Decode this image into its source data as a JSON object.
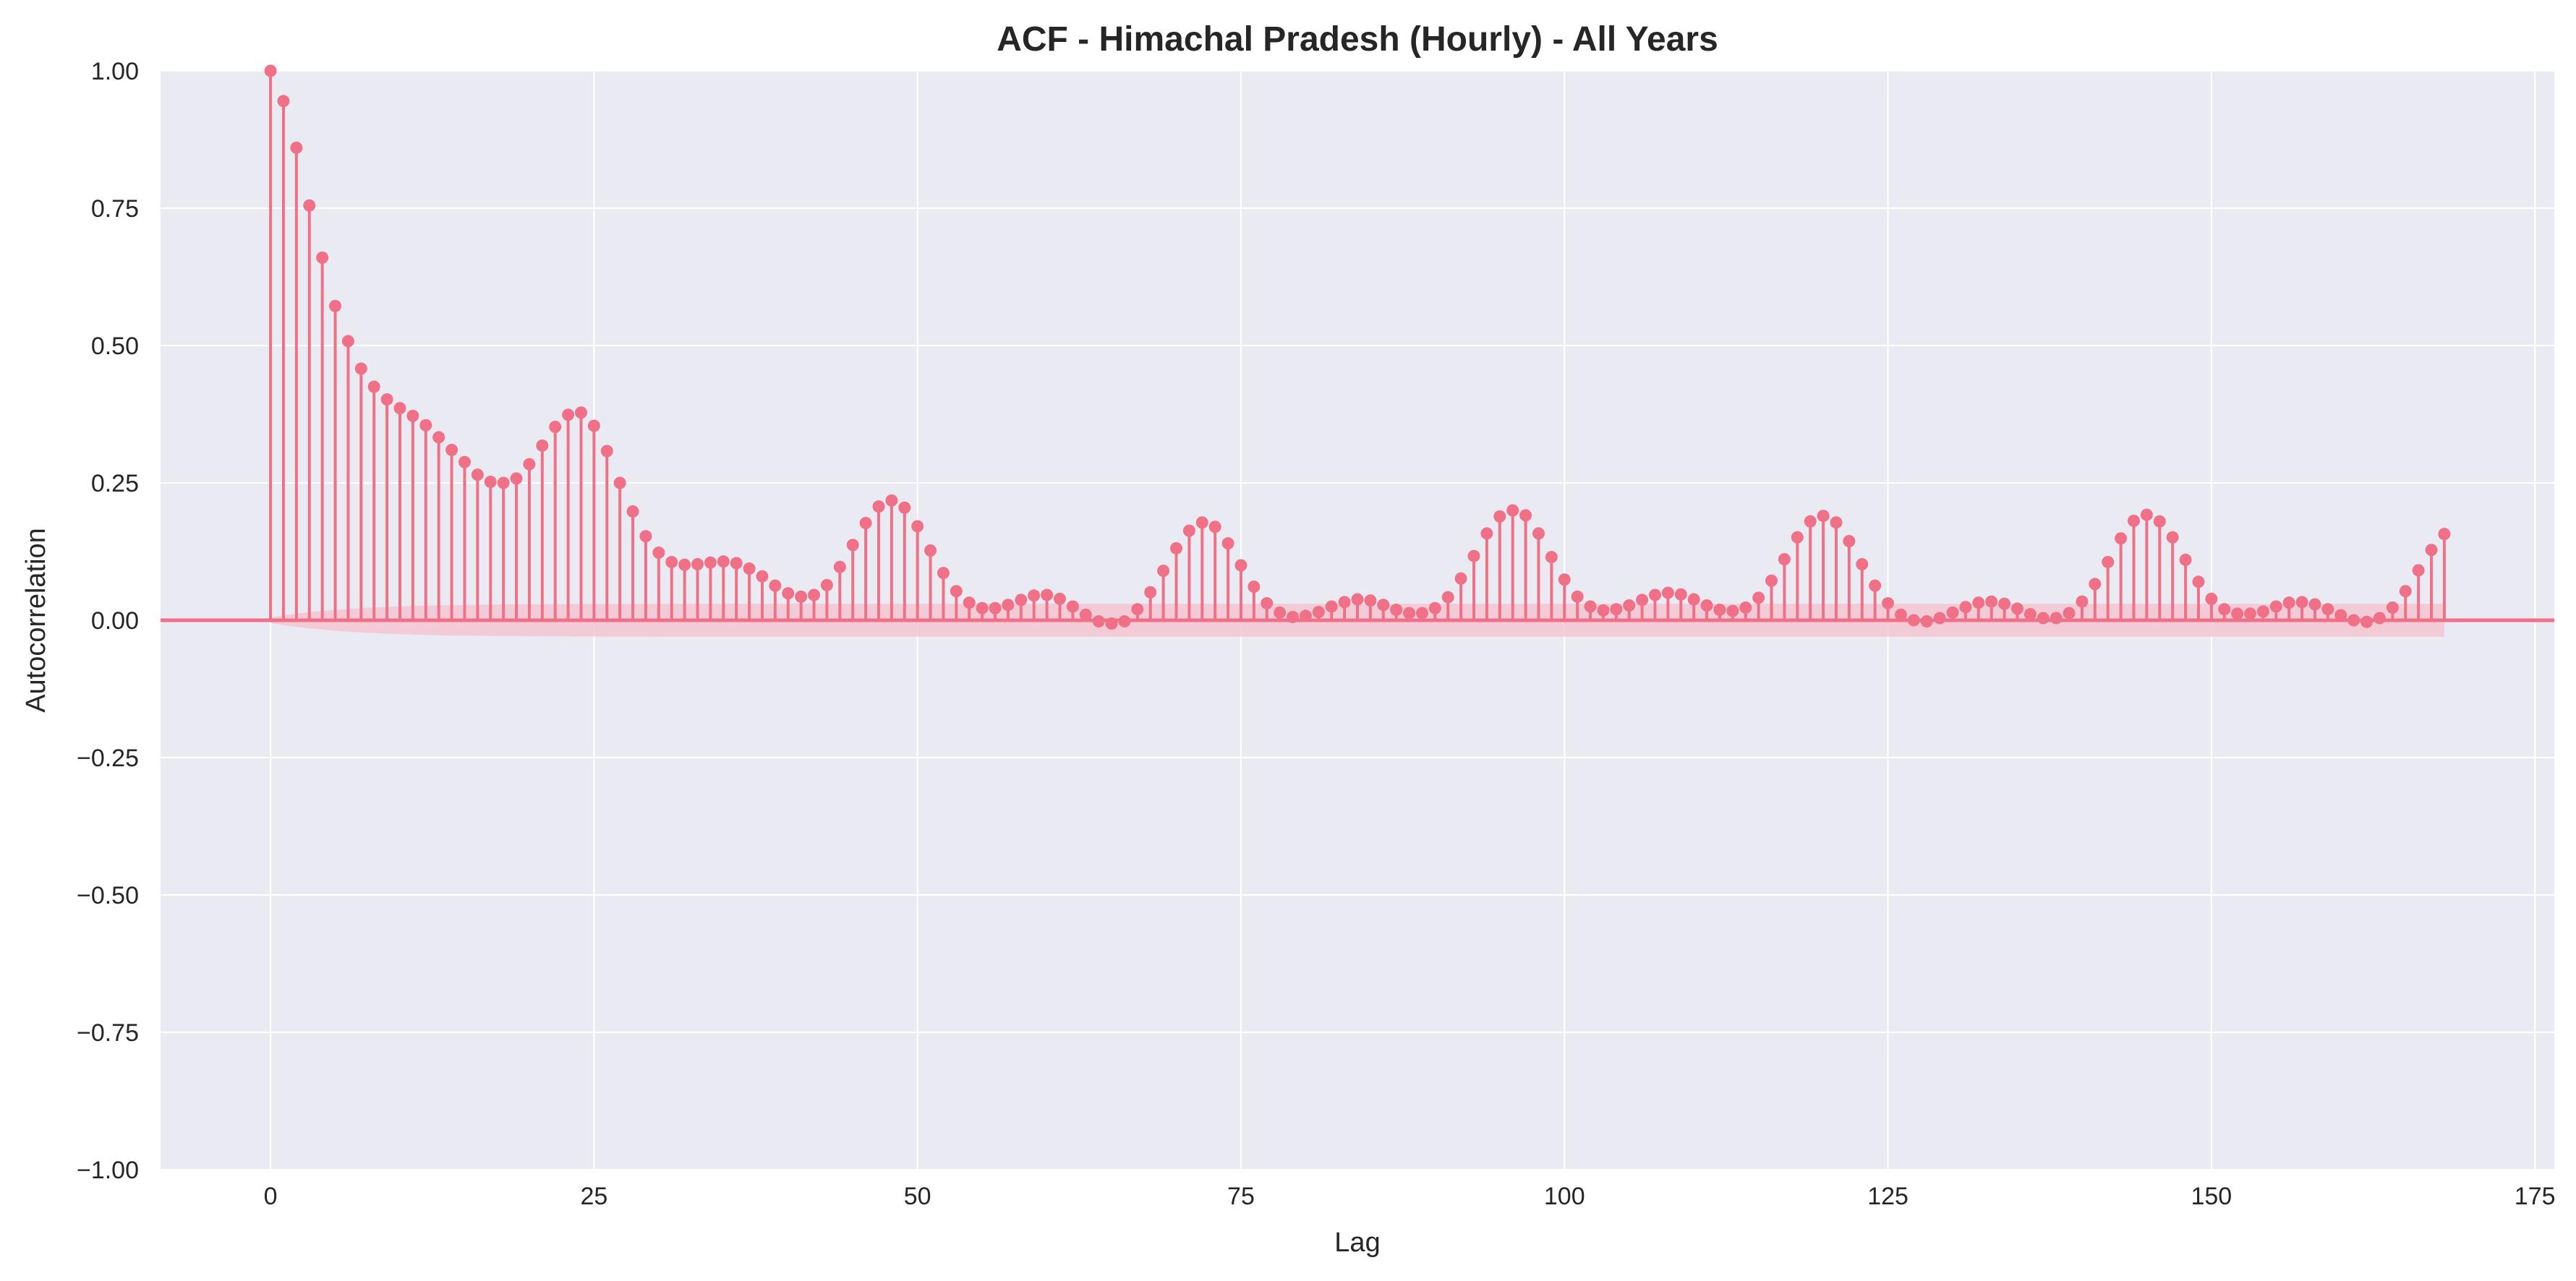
{
  "chart_data": {
    "type": "stem",
    "title": "ACF - Himachal Pradesh (Hourly) - All Years",
    "xlabel": "Lag",
    "ylabel": "Autocorrelation",
    "xlim": [
      -8.5,
      176.5
    ],
    "ylim": [
      -1.0,
      1.0
    ],
    "xticks": [
      0,
      25,
      50,
      75,
      100,
      125,
      150,
      175
    ],
    "xtick_labels": [
      "0",
      "25",
      "50",
      "75",
      "100",
      "125",
      "150",
      "175"
    ],
    "yticks": [
      1.0,
      0.75,
      0.5,
      0.25,
      0.0,
      -0.25,
      -0.5,
      -0.75,
      -1.0
    ],
    "ytick_labels": [
      "1.00",
      "0.75",
      "0.50",
      "0.25",
      "0.00",
      "−0.25",
      "−0.50",
      "−0.75",
      "−1.00"
    ],
    "grid": true,
    "colors": {
      "series": "#f07087",
      "band": "#f5c6d2",
      "background": "#eaeaf2",
      "grid": "#ffffff"
    },
    "confidence_band": {
      "start": 0,
      "end": 168,
      "upper_min": 0.005,
      "upper_max": 0.03,
      "lower_min": -0.005,
      "lower_max": -0.03
    },
    "lags": [
      0,
      1,
      2,
      3,
      4,
      5,
      6,
      7,
      8,
      9,
      10,
      11,
      12,
      13,
      14,
      15,
      16,
      17,
      18,
      19,
      20,
      21,
      22,
      23,
      24,
      25,
      26,
      27,
      28,
      29,
      30,
      31,
      32,
      33,
      34,
      35,
      36,
      37,
      38,
      39,
      40,
      41,
      42,
      43,
      44,
      45,
      46,
      47,
      48,
      49,
      50,
      51,
      52,
      53,
      54,
      55,
      56,
      57,
      58,
      59,
      60,
      61,
      62,
      63,
      64,
      65,
      66,
      67,
      68,
      69,
      70,
      71,
      72,
      73,
      74,
      75,
      76,
      77,
      78,
      79,
      80,
      81,
      82,
      83,
      84,
      85,
      86,
      87,
      88,
      89,
      90,
      91,
      92,
      93,
      94,
      95,
      96,
      97,
      98,
      99,
      100,
      101,
      102,
      103,
      104,
      105,
      106,
      107,
      108,
      109,
      110,
      111,
      112,
      113,
      114,
      115,
      116,
      117,
      118,
      119,
      120,
      121,
      122,
      123,
      124,
      125,
      126,
      127,
      128,
      129,
      130,
      131,
      132,
      133,
      134,
      135,
      136,
      137,
      138,
      139,
      140,
      141,
      142,
      143,
      144,
      145,
      146,
      147,
      148,
      149,
      150,
      151,
      152,
      153,
      154,
      155,
      156,
      157,
      158,
      159,
      160,
      161,
      162,
      163,
      164,
      165,
      166,
      167,
      168
    ],
    "values": [
      1.0,
      0.945,
      0.86,
      0.755,
      0.66,
      0.572,
      0.508,
      0.458,
      0.425,
      0.402,
      0.386,
      0.372,
      0.355,
      0.333,
      0.31,
      0.288,
      0.265,
      0.252,
      0.25,
      0.258,
      0.284,
      0.318,
      0.352,
      0.374,
      0.378,
      0.354,
      0.308,
      0.25,
      0.198,
      0.153,
      0.123,
      0.106,
      0.101,
      0.102,
      0.105,
      0.107,
      0.104,
      0.094,
      0.08,
      0.063,
      0.049,
      0.043,
      0.046,
      0.064,
      0.097,
      0.137,
      0.177,
      0.207,
      0.218,
      0.205,
      0.171,
      0.127,
      0.086,
      0.053,
      0.032,
      0.022,
      0.022,
      0.028,
      0.037,
      0.045,
      0.046,
      0.039,
      0.025,
      0.01,
      -0.002,
      -0.006,
      -0.002,
      0.02,
      0.051,
      0.09,
      0.131,
      0.163,
      0.178,
      0.17,
      0.14,
      0.1,
      0.061,
      0.031,
      0.014,
      0.006,
      0.008,
      0.015,
      0.025,
      0.033,
      0.038,
      0.036,
      0.028,
      0.019,
      0.013,
      0.013,
      0.022,
      0.042,
      0.076,
      0.117,
      0.158,
      0.189,
      0.2,
      0.191,
      0.158,
      0.115,
      0.074,
      0.043,
      0.025,
      0.018,
      0.02,
      0.027,
      0.037,
      0.046,
      0.05,
      0.047,
      0.038,
      0.027,
      0.019,
      0.017,
      0.023,
      0.041,
      0.072,
      0.111,
      0.151,
      0.18,
      0.19,
      0.178,
      0.144,
      0.102,
      0.063,
      0.031,
      0.01,
      0.0,
      -0.002,
      0.004,
      0.014,
      0.024,
      0.032,
      0.034,
      0.03,
      0.021,
      0.011,
      0.004,
      0.004,
      0.013,
      0.034,
      0.066,
      0.106,
      0.149,
      0.181,
      0.192,
      0.18,
      0.151,
      0.11,
      0.07,
      0.039,
      0.02,
      0.012,
      0.012,
      0.016,
      0.025,
      0.032,
      0.033,
      0.029,
      0.02,
      0.009,
      0.0,
      -0.003,
      0.004,
      0.023,
      0.053,
      0.091,
      0.128,
      0.157,
      0.168
    ]
  }
}
